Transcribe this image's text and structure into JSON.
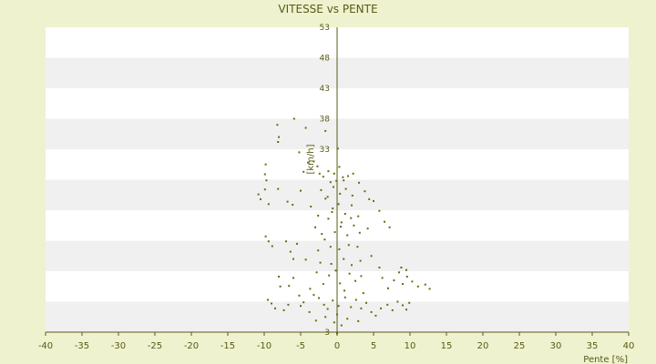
{
  "chart_data": {
    "type": "scatter",
    "title": "VITESSE vs PENTE",
    "xlabel": "Pente [%]",
    "ylabel": "[km/h]",
    "xlim": [
      -40,
      40
    ],
    "ylim": [
      3,
      53
    ],
    "x_ticks": [
      "-40",
      "-35",
      "-30",
      "-25",
      "-20",
      "-15",
      "-10",
      "-5",
      "0",
      "5",
      "10",
      "15",
      "20",
      "25",
      "30",
      "35",
      "40"
    ],
    "y_ticks": [
      "53",
      "48",
      "43",
      "38",
      "33",
      "28",
      "23",
      "18",
      "13",
      "8",
      "3"
    ],
    "visible_y_ticks": [
      "53",
      "48",
      "43",
      "38",
      "33",
      "3"
    ],
    "grid": "horizontal bands",
    "colors": {
      "marker": "#6b6b10",
      "axis": "#5a5a14",
      "band_light": "#ffffff",
      "band_dark": "#f0f0f0",
      "background": "#eef2cf"
    },
    "series": [
      {
        "points": [
          [
            -8.2,
            37.0
          ],
          [
            -8.0,
            35.0
          ],
          [
            -8.1,
            34.2
          ],
          [
            -5.9,
            38.0
          ],
          [
            -4.3,
            36.5
          ],
          [
            -1.6,
            36.0
          ],
          [
            0.1,
            33.1
          ],
          [
            -5.2,
            32.5
          ],
          [
            -9.8,
            30.5
          ],
          [
            -9.9,
            28.9
          ],
          [
            -9.7,
            27.9
          ],
          [
            -9.9,
            26.4
          ],
          [
            -10.8,
            25.6
          ],
          [
            -10.5,
            24.8
          ],
          [
            -9.4,
            24.0
          ],
          [
            -8.1,
            26.5
          ],
          [
            -6.8,
            24.4
          ],
          [
            -6.1,
            23.9
          ],
          [
            -5.0,
            26.2
          ],
          [
            -4.6,
            29.3
          ],
          [
            -4.0,
            30.8
          ],
          [
            -3.2,
            31.0
          ],
          [
            -2.7,
            30.2
          ],
          [
            -2.4,
            29.0
          ],
          [
            -1.9,
            28.5
          ],
          [
            -1.2,
            29.4
          ],
          [
            -0.9,
            27.6
          ],
          [
            -0.4,
            29.0
          ],
          [
            0.3,
            30.1
          ],
          [
            0.9,
            27.9
          ],
          [
            1.5,
            28.6
          ],
          [
            2.2,
            29.0
          ],
          [
            3.0,
            27.5
          ],
          [
            3.8,
            26.1
          ],
          [
            4.4,
            24.8
          ],
          [
            5.0,
            24.5
          ],
          [
            5.8,
            22.9
          ],
          [
            6.5,
            21.1
          ],
          [
            7.2,
            20.2
          ],
          [
            -9.8,
            18.7
          ],
          [
            -9.4,
            17.9
          ],
          [
            -8.9,
            17.1
          ],
          [
            -7.0,
            17.9
          ],
          [
            -6.4,
            16.2
          ],
          [
            -6.0,
            15.0
          ],
          [
            -5.5,
            17.5
          ],
          [
            -4.3,
            14.9
          ],
          [
            -8.0,
            12.1
          ],
          [
            -7.8,
            10.5
          ],
          [
            -6.6,
            10.6
          ],
          [
            -6.0,
            11.9
          ],
          [
            -5.2,
            9.0
          ],
          [
            -9.0,
            7.7
          ],
          [
            -8.5,
            6.9
          ],
          [
            -9.5,
            8.3
          ],
          [
            -7.3,
            6.6
          ],
          [
            -6.7,
            7.5
          ],
          [
            -5.0,
            7.3
          ],
          [
            -4.6,
            7.9
          ],
          [
            -3.8,
            6.3
          ],
          [
            -3.2,
            9.1
          ],
          [
            -2.5,
            8.6
          ],
          [
            -1.8,
            7.5
          ],
          [
            -1.3,
            6.8
          ],
          [
            -0.6,
            8.2
          ],
          [
            0.2,
            7.3
          ],
          [
            1.1,
            8.7
          ],
          [
            1.9,
            7.1
          ],
          [
            2.6,
            8.3
          ],
          [
            3.3,
            6.9
          ],
          [
            4.0,
            7.8
          ],
          [
            4.7,
            6.3
          ],
          [
            5.3,
            5.7
          ],
          [
            6.0,
            6.9
          ],
          [
            6.9,
            7.5
          ],
          [
            7.6,
            6.6
          ],
          [
            8.3,
            8.0
          ],
          [
            9.0,
            7.4
          ],
          [
            9.5,
            6.7
          ],
          [
            9.9,
            7.8
          ],
          [
            7.0,
            10.2
          ],
          [
            7.8,
            11.5
          ],
          [
            8.5,
            12.8
          ],
          [
            9.0,
            10.9
          ],
          [
            9.6,
            12.1
          ],
          [
            10.3,
            11.3
          ],
          [
            11.1,
            10.5
          ],
          [
            12.1,
            10.8
          ],
          [
            12.7,
            10.1
          ],
          [
            8.8,
            13.6
          ],
          [
            9.5,
            13.2
          ],
          [
            6.2,
            11.9
          ],
          [
            5.8,
            13.6
          ],
          [
            4.7,
            15.5
          ],
          [
            -2.9,
            4.9
          ],
          [
            -1.6,
            5.5
          ],
          [
            -0.4,
            4.6
          ],
          [
            1.4,
            5.2
          ],
          [
            2.9,
            4.8
          ],
          [
            0.6,
            4.1
          ],
          [
            -1.9,
            10.9
          ],
          [
            -1.1,
            12.3
          ],
          [
            0.4,
            11.0
          ],
          [
            1.7,
            12.6
          ],
          [
            2.5,
            11.4
          ],
          [
            3.3,
            12.2
          ],
          [
            -2.3,
            14.4
          ],
          [
            -0.8,
            14.2
          ],
          [
            0.9,
            15.0
          ],
          [
            2.0,
            14.0
          ],
          [
            3.2,
            14.7
          ],
          [
            -3.0,
            20.2
          ],
          [
            -2.1,
            19.1
          ],
          [
            -1.2,
            21.6
          ],
          [
            -0.3,
            19.4
          ],
          [
            0.6,
            21.0
          ],
          [
            1.4,
            18.9
          ],
          [
            2.3,
            20.5
          ],
          [
            3.1,
            19.3
          ],
          [
            4.2,
            20.0
          ],
          [
            -3.6,
            23.6
          ],
          [
            -2.6,
            22.1
          ],
          [
            -1.6,
            24.9
          ],
          [
            -0.7,
            22.7
          ],
          [
            0.2,
            24.0
          ],
          [
            1.1,
            22.4
          ],
          [
            2.0,
            23.8
          ],
          [
            2.9,
            22.0
          ],
          [
            -2.2,
            26.3
          ],
          [
            -1.3,
            25.2
          ],
          [
            -0.5,
            26.8
          ],
          [
            0.4,
            25.7
          ],
          [
            1.2,
            26.5
          ],
          [
            2.1,
            25.4
          ],
          [
            -0.9,
            17.0
          ],
          [
            0.3,
            16.6
          ],
          [
            1.6,
            17.3
          ],
          [
            -2.6,
            16.4
          ],
          [
            2.8,
            17.0
          ],
          [
            -0.1,
            27.8
          ],
          [
            0.8,
            28.4
          ],
          [
            -0.6,
            23.3
          ],
          [
            0.5,
            20.3
          ],
          [
            -1.7,
            18.2
          ],
          [
            1.9,
            21.7
          ],
          [
            -0.2,
            13.1
          ],
          [
            1.0,
            9.8
          ],
          [
            -2.8,
            12.8
          ],
          [
            3.6,
            9.4
          ],
          [
            -3.7,
            10.1
          ],
          [
            0.0,
            2.8
          ],
          [
            0.0,
            5.9
          ]
        ]
      }
    ]
  }
}
